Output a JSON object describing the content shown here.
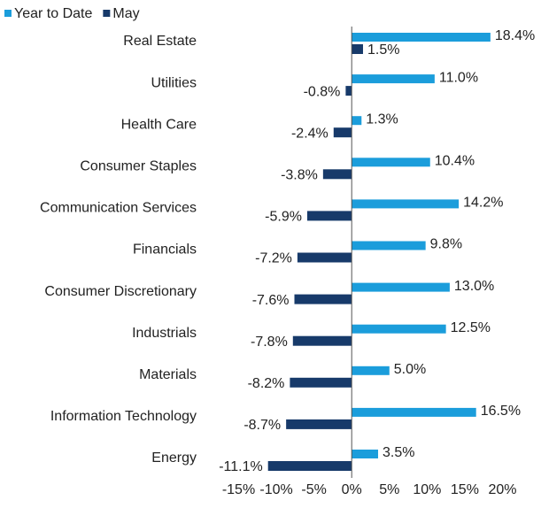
{
  "chart_data": {
    "type": "bar",
    "orientation": "horizontal",
    "categories": [
      "Real Estate",
      "Utilities",
      "Health Care",
      "Consumer Staples",
      "Communication Services",
      "Financials",
      "Consumer Discretionary",
      "Industrials",
      "Materials",
      "Information Technology",
      "Energy"
    ],
    "series": [
      {
        "name": "Year to Date",
        "color": "#1b9ddb",
        "values": [
          18.4,
          11.0,
          1.3,
          10.4,
          14.2,
          9.8,
          13.0,
          12.5,
          5.0,
          16.5,
          3.5
        ],
        "value_labels": [
          "18.4%",
          "11.0%",
          "1.3%",
          "10.4%",
          "14.2%",
          "9.8%",
          "13.0%",
          "12.5%",
          "5.0%",
          "16.5%",
          "3.5%"
        ]
      },
      {
        "name": "May",
        "color": "#173a6a",
        "values": [
          1.5,
          -0.8,
          -2.4,
          -3.8,
          -5.9,
          -7.2,
          -7.6,
          -7.8,
          -8.2,
          -8.7,
          -11.1
        ],
        "value_labels": [
          "1.5%",
          "-0.8%",
          "-2.4%",
          "-3.8%",
          "-5.9%",
          "-7.2%",
          "-7.6%",
          "-7.8%",
          "-8.2%",
          "-8.7%",
          "-11.1%"
        ]
      }
    ],
    "xlim": [
      -15,
      20
    ],
    "xticks": [
      {
        "value": -15,
        "label": "-15%"
      },
      {
        "value": -10,
        "label": "-10%"
      },
      {
        "value": -5,
        "label": "-5%"
      },
      {
        "value": 0,
        "label": "0%"
      },
      {
        "value": 5,
        "label": "5%"
      },
      {
        "value": 10,
        "label": "10%"
      },
      {
        "value": 15,
        "label": "15%"
      },
      {
        "value": 20,
        "label": "20%"
      }
    ],
    "legend": "top-left"
  }
}
